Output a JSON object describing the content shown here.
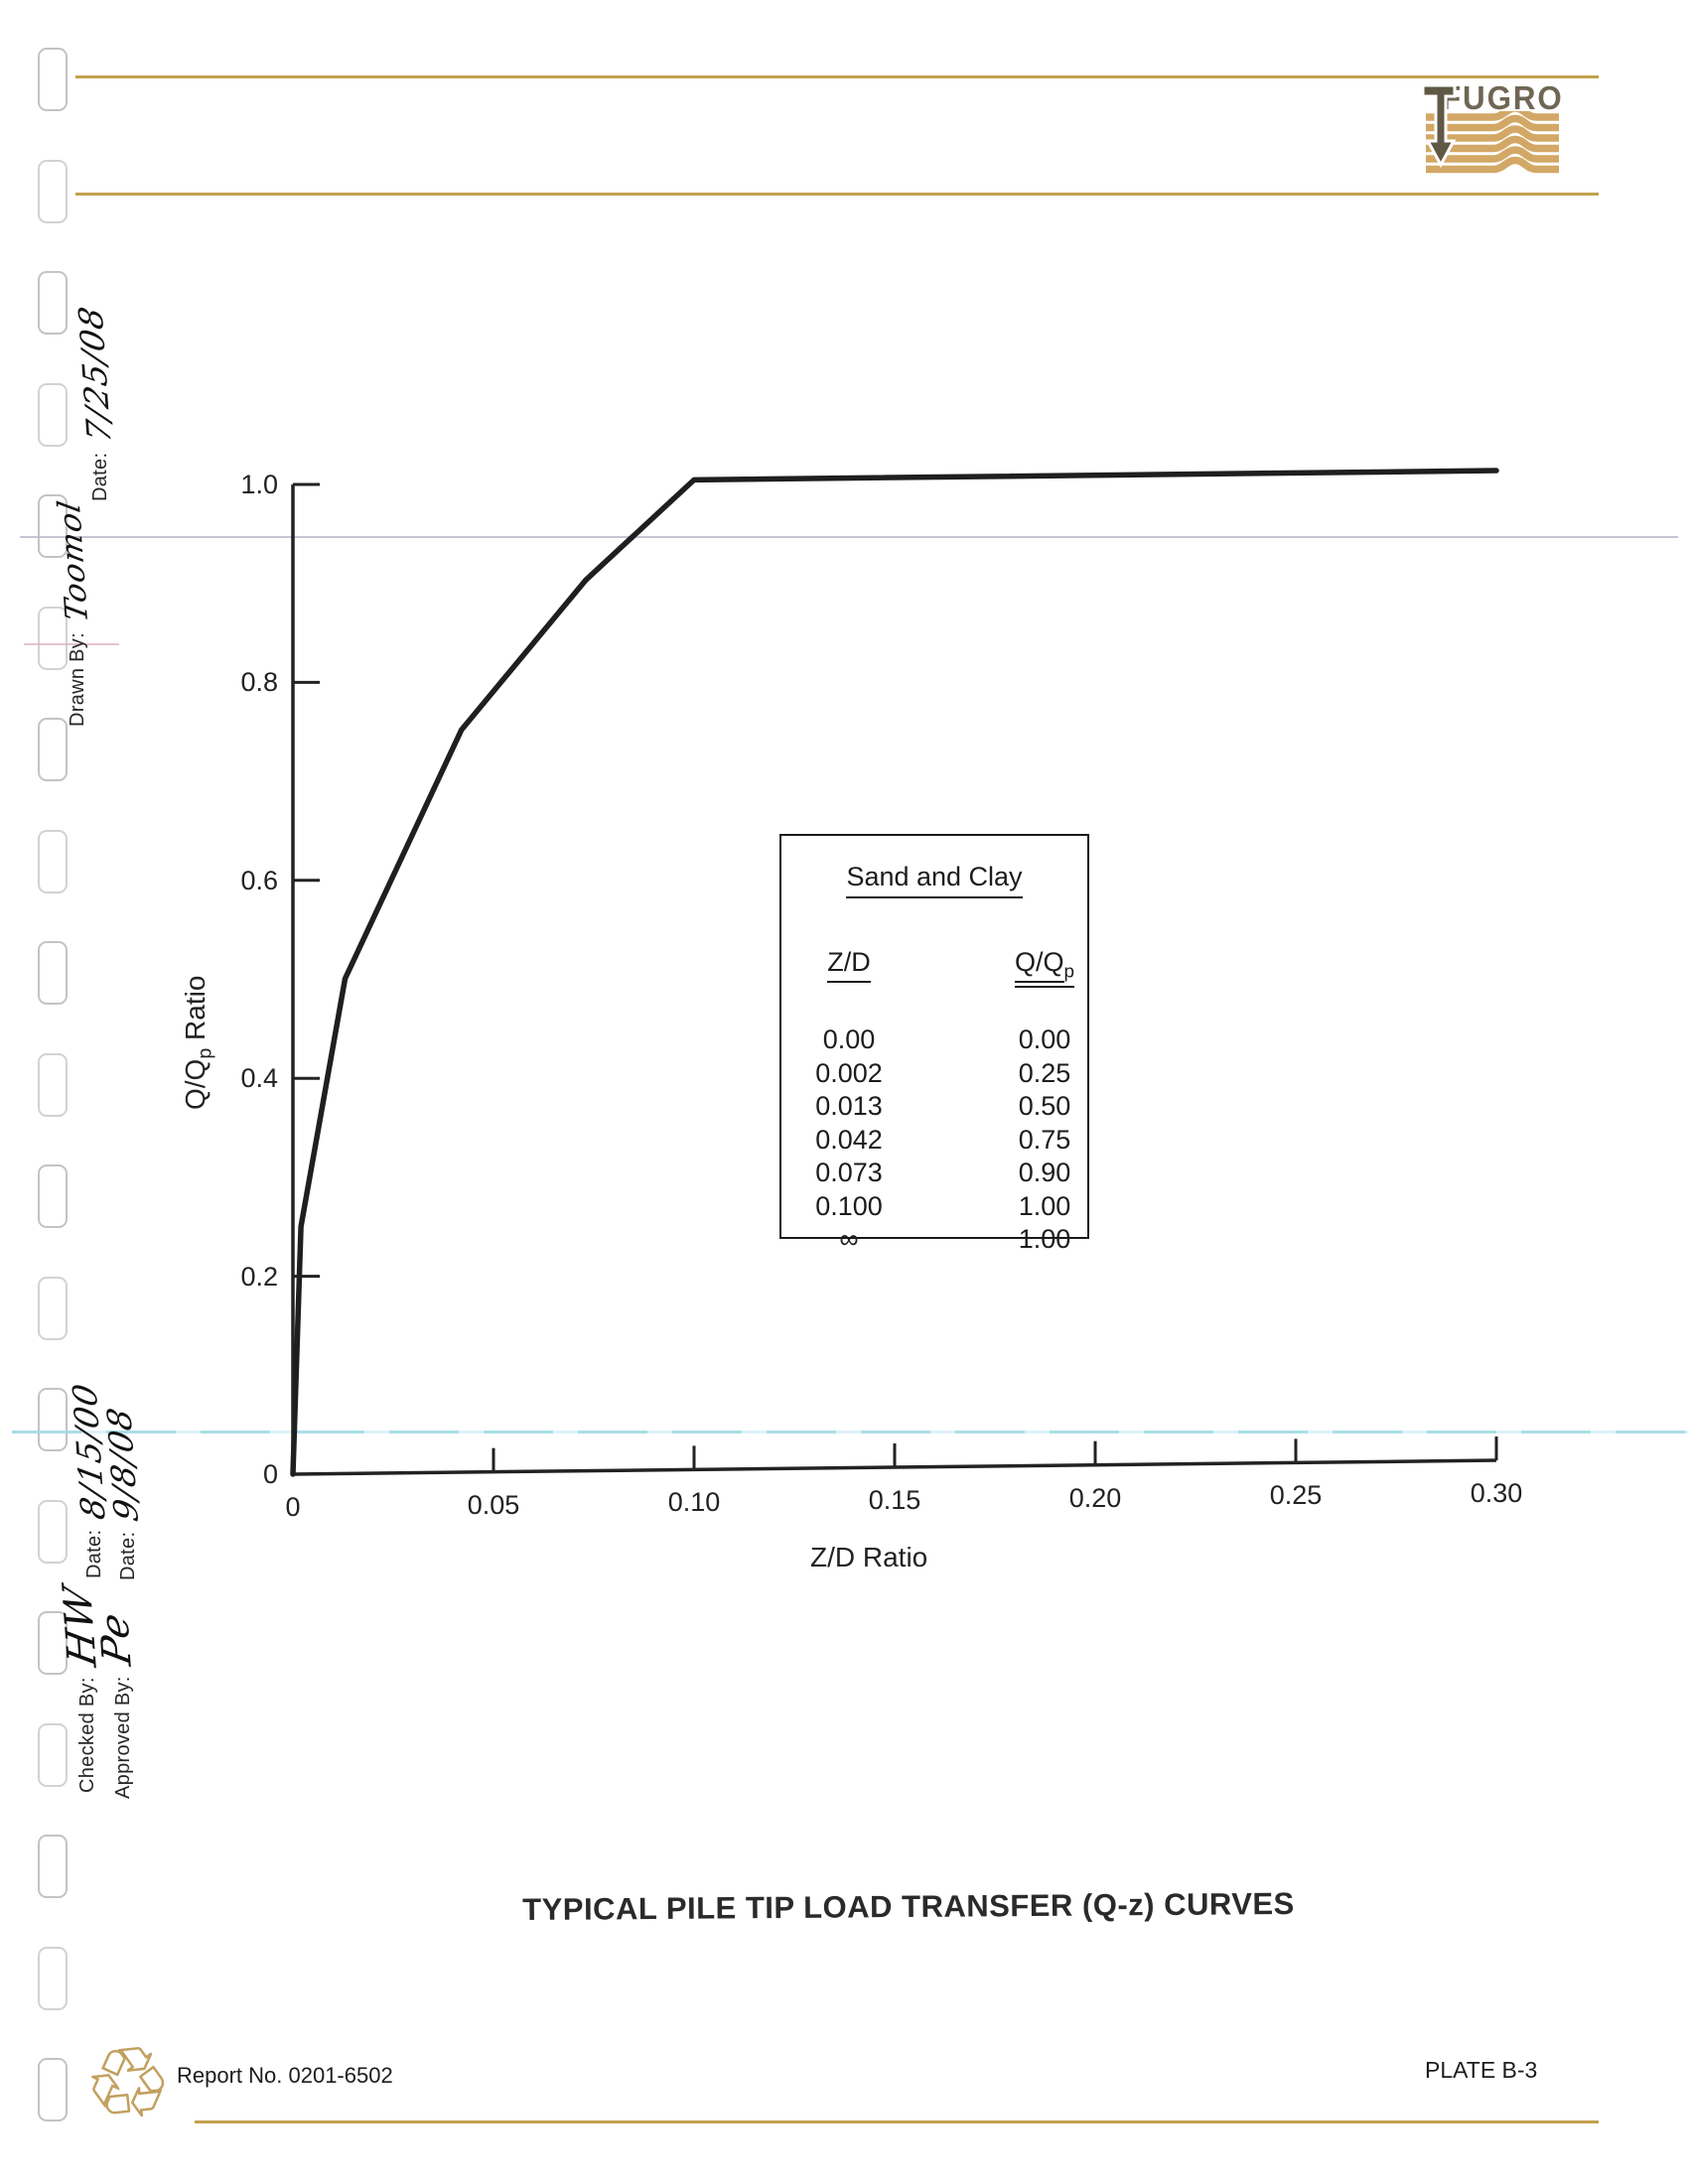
{
  "page": {
    "title": "TYPICAL PILE TIP LOAD TRANSFER (Q-z) CURVES",
    "report_no": "Report No. 0201-6502",
    "plate": "PLATE B-3"
  },
  "logo": {
    "company": "FUGRO"
  },
  "icons": {
    "recycle": "♻"
  },
  "sidebar": {
    "drawn_by_label": "Drawn By:",
    "drawn_by_value": "Toomol",
    "drawn_date_label": "Date:",
    "drawn_date_value": "7/25/08",
    "checked_by_label": "Checked By:",
    "checked_by_value": "HW",
    "checked_date_label": "Date:",
    "checked_date_value": "8/15/00",
    "approved_by_label": "Approved By:",
    "approved_by_value": "Pe",
    "approved_date_label": "Date:",
    "approved_date_value": "9/8/08"
  },
  "legend_table": {
    "title": "Sand and Clay",
    "col1_header": "Z/D",
    "col2_header": "Q/Q",
    "col2_header_sub": "p",
    "rows": [
      [
        "0.00",
        "0.00"
      ],
      [
        "0.002",
        "0.25"
      ],
      [
        "0.013",
        "0.50"
      ],
      [
        "0.042",
        "0.75"
      ],
      [
        "0.073",
        "0.90"
      ],
      [
        "0.100",
        "1.00"
      ],
      [
        "∞",
        "1.00"
      ]
    ]
  },
  "chart_data": {
    "type": "line",
    "title": "",
    "xlabel": "Z/D Ratio",
    "ylabel": "Q/Qp Ratio",
    "ylabel_display": {
      "pre": "Q/Q",
      "sub": "p",
      "post": " Ratio"
    },
    "xlim": [
      0,
      0.3
    ],
    "ylim": [
      0,
      1.0
    ],
    "grid": false,
    "legend_position": "boxed table, center-right of plot",
    "x_ticks": [
      0,
      0.05,
      0.1,
      0.15,
      0.2,
      0.25,
      0.3
    ],
    "x_tick_labels": [
      "0",
      "0.05",
      "0.10",
      "0.15",
      "0.20",
      "0.25",
      "0.30"
    ],
    "y_ticks": [
      0,
      0.2,
      0.4,
      0.6,
      0.8,
      1.0
    ],
    "y_tick_labels": [
      "0",
      "0.2",
      "0.4",
      "0.6",
      "0.8",
      "1.0"
    ],
    "series": [
      {
        "name": "Sand and Clay",
        "x": [
          0.0,
          0.002,
          0.013,
          0.042,
          0.073,
          0.1,
          0.3
        ],
        "y": [
          0.0,
          0.25,
          0.5,
          0.75,
          0.9,
          1.0,
          1.0
        ]
      }
    ],
    "line_color": "#1f1f1f"
  },
  "colors": {
    "gold_rule": "#c2a14e",
    "logo_stripe": "#d3a866",
    "logo_text": "#6f6654",
    "logo_arrow": "#5f5845"
  }
}
